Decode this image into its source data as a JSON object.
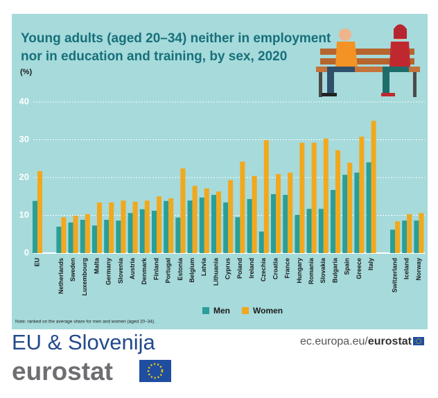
{
  "chart_data": {
    "type": "bar",
    "title": [
      "Young adults (aged 20–34) neither in employment",
      "nor in education and training, by sex, 2020"
    ],
    "ylabel": "(%)",
    "note": "Note: ranked on the average share for men and women (aged 20–34).",
    "categories": [
      "EU",
      null,
      "Netherlands",
      "Sweden",
      "Luxembourg",
      "Malta",
      "Germany",
      "Slovenia",
      "Austria",
      "Denmark",
      "Finland",
      "Portugal",
      "Estonia",
      "Belgium",
      "Latvia",
      "Lithuania",
      "Cyprus",
      "Poland",
      "Ireland",
      "Czechia",
      "Croatia",
      "France",
      "Hungary",
      "Romania",
      "Slovakia",
      "Bulgaria",
      "Spain",
      "Greece",
      "Italy",
      null,
      "Switzerland",
      "Iceland",
      "Norway"
    ],
    "series": [
      {
        "name": "Men",
        "color": "#2a9e98",
        "values": [
          13.8,
          null,
          7.0,
          8.1,
          8.8,
          7.3,
          8.8,
          8.6,
          10.6,
          11.6,
          11.2,
          13.8,
          9.4,
          13.9,
          14.7,
          15.4,
          13.4,
          9.5,
          14.3,
          5.7,
          15.6,
          15.4,
          10.1,
          11.7,
          11.7,
          16.7,
          20.7,
          21.3,
          24.0,
          null,
          6.2,
          8.6,
          8.6
        ]
      },
      {
        "name": "Women",
        "color": "#f2a81d",
        "values": [
          21.7,
          null,
          9.5,
          9.9,
          10.3,
          13.4,
          13.4,
          13.9,
          13.6,
          13.9,
          15.0,
          14.5,
          22.4,
          17.8,
          17.1,
          16.3,
          19.3,
          24.2,
          20.4,
          29.9,
          20.9,
          21.3,
          29.2,
          29.2,
          30.3,
          27.2,
          23.9,
          30.8,
          35.0,
          null,
          8.4,
          10.3,
          10.6
        ]
      }
    ],
    "ylim": [
      0,
      40
    ],
    "yticks": [
      0,
      10,
      20,
      30,
      40
    ],
    "grid": true
  },
  "branding": {
    "heading": "EU & Slovenija",
    "logo": "eurostat",
    "url_prefix": "ec.europa.eu/",
    "url_bold": "eurostat"
  }
}
